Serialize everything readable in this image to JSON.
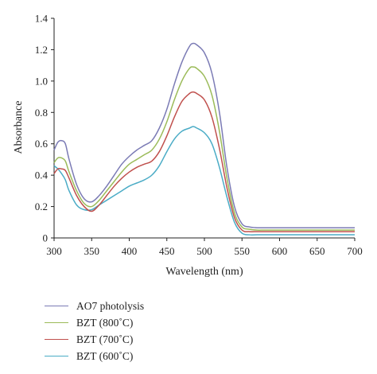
{
  "chart_data": {
    "type": "line",
    "xlabel": "Wavelength (nm)",
    "ylabel": "Absorbance",
    "xlim": [
      300,
      700
    ],
    "ylim": [
      0,
      1.4
    ],
    "xticks": [
      "300",
      "350",
      "400",
      "450",
      "500",
      "550",
      "600",
      "650",
      "700"
    ],
    "yticks": [
      "0",
      "0.2",
      "0.4",
      "0.6",
      "0.8",
      "1.0",
      "1.2",
      "1.4"
    ],
    "grid": false,
    "legend_position": "bottom-left",
    "series": [
      {
        "name": "AO7 photolysis",
        "color": "#7b7bb5",
        "x": [
          300,
          305,
          310,
          315,
          320,
          330,
          340,
          350,
          360,
          370,
          380,
          390,
          400,
          410,
          420,
          430,
          440,
          450,
          460,
          470,
          480,
          485,
          490,
          500,
          510,
          520,
          530,
          540,
          550,
          560,
          570,
          580,
          600,
          650,
          700
        ],
        "y": [
          0.56,
          0.61,
          0.62,
          0.6,
          0.5,
          0.34,
          0.25,
          0.23,
          0.27,
          0.33,
          0.4,
          0.47,
          0.52,
          0.56,
          0.59,
          0.62,
          0.7,
          0.82,
          0.98,
          1.12,
          1.22,
          1.24,
          1.23,
          1.18,
          1.05,
          0.8,
          0.45,
          0.2,
          0.09,
          0.07,
          0.065,
          0.065,
          0.065,
          0.065,
          0.065
        ]
      },
      {
        "name": "BZT (800˚C)",
        "color": "#9bbb59",
        "x": [
          300,
          305,
          310,
          315,
          320,
          330,
          340,
          350,
          360,
          370,
          380,
          390,
          400,
          410,
          420,
          430,
          440,
          450,
          460,
          470,
          480,
          485,
          490,
          500,
          510,
          520,
          530,
          540,
          550,
          560,
          570,
          580,
          600,
          650,
          700
        ],
        "y": [
          0.48,
          0.51,
          0.51,
          0.49,
          0.42,
          0.3,
          0.22,
          0.2,
          0.24,
          0.3,
          0.36,
          0.42,
          0.47,
          0.5,
          0.53,
          0.56,
          0.63,
          0.74,
          0.88,
          1.0,
          1.08,
          1.09,
          1.08,
          1.03,
          0.91,
          0.68,
          0.38,
          0.16,
          0.07,
          0.055,
          0.05,
          0.05,
          0.05,
          0.05,
          0.05
        ]
      },
      {
        "name": "BZT (700˚C)",
        "color": "#c0504d",
        "x": [
          300,
          305,
          310,
          315,
          320,
          330,
          340,
          350,
          360,
          370,
          380,
          390,
          400,
          410,
          420,
          430,
          440,
          450,
          460,
          470,
          480,
          485,
          490,
          500,
          510,
          520,
          530,
          540,
          550,
          560,
          570,
          580,
          600,
          650,
          700
        ],
        "y": [
          0.41,
          0.44,
          0.44,
          0.43,
          0.38,
          0.27,
          0.2,
          0.17,
          0.21,
          0.27,
          0.33,
          0.38,
          0.42,
          0.45,
          0.47,
          0.49,
          0.55,
          0.65,
          0.77,
          0.87,
          0.92,
          0.93,
          0.92,
          0.88,
          0.77,
          0.57,
          0.32,
          0.13,
          0.05,
          0.04,
          0.04,
          0.04,
          0.04,
          0.04,
          0.04
        ]
      },
      {
        "name": "BZT (600˚C)",
        "color": "#4bacc6",
        "x": [
          300,
          305,
          310,
          315,
          320,
          330,
          340,
          350,
          360,
          370,
          380,
          390,
          400,
          410,
          420,
          430,
          440,
          450,
          460,
          470,
          480,
          485,
          490,
          500,
          510,
          520,
          530,
          540,
          550,
          560,
          570,
          580,
          600,
          650,
          700
        ],
        "y": [
          0.46,
          0.44,
          0.41,
          0.37,
          0.3,
          0.21,
          0.18,
          0.18,
          0.21,
          0.24,
          0.27,
          0.3,
          0.33,
          0.35,
          0.37,
          0.4,
          0.46,
          0.55,
          0.63,
          0.68,
          0.7,
          0.71,
          0.7,
          0.67,
          0.6,
          0.45,
          0.26,
          0.1,
          0.03,
          0.02,
          0.02,
          0.02,
          0.02,
          0.02,
          0.02
        ]
      }
    ]
  }
}
